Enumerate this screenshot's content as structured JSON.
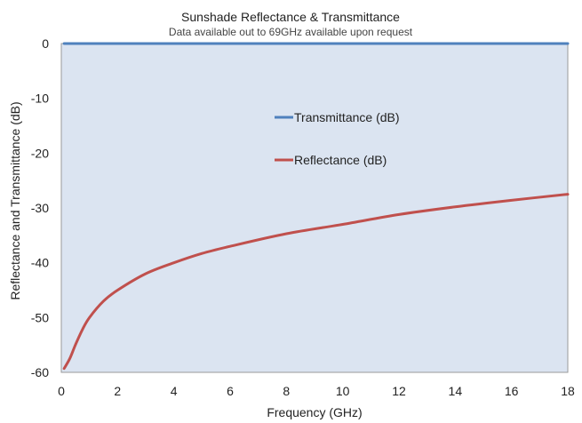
{
  "chart_data": {
    "type": "line",
    "title": "Sunshade Reflectance & Transmittance",
    "subtitle": "Data available out to 69GHz available upon request",
    "xlabel": "Frequency (GHz)",
    "ylabel": "Reflectance and Transmittance (dB)",
    "xlim": [
      0,
      18
    ],
    "ylim": [
      -60,
      0
    ],
    "xticks": [
      0,
      2,
      4,
      6,
      8,
      10,
      12,
      14,
      16,
      18
    ],
    "yticks": [
      0,
      -10,
      -20,
      -30,
      -40,
      -50,
      -60
    ],
    "grid": false,
    "legend": "center-right",
    "plot_background": "#dbe4f1",
    "series": [
      {
        "name": "Transmittance (dB)",
        "color": "#4f81bd",
        "x": [
          0.1,
          18
        ],
        "y": [
          0,
          0
        ]
      },
      {
        "name": "Reflectance (dB)",
        "color": "#c0504d",
        "x": [
          0.1,
          0.3,
          0.5,
          0.75,
          1,
          1.5,
          2,
          3,
          4,
          5,
          6,
          8,
          10,
          12,
          14,
          16,
          18
        ],
        "y": [
          -59.3,
          -57.5,
          -55,
          -52.2,
          -50,
          -47,
          -45,
          -42,
          -40,
          -38.3,
          -37,
          -34.7,
          -33,
          -31.2,
          -29.8,
          -28.6,
          -27.5
        ]
      }
    ]
  }
}
